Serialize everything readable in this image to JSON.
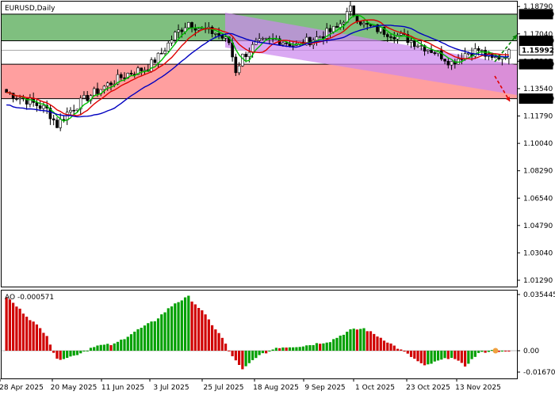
{
  "chart_data": {
    "type": "candlestick",
    "symbol": "EURUSD",
    "timeframe": "Daily",
    "title": "EURUSD,Daily",
    "price_axis": {
      "min": 1.0129,
      "max": 1.187,
      "ticks": [
        "1.18790",
        "1.17040",
        "1.15292",
        "1.13540",
        "1.11790",
        "1.10040",
        "1.08290",
        "1.06540",
        "1.04790",
        "1.03040",
        "1.01290"
      ]
    },
    "date_labels": [
      "28 Apr 2025",
      "20 May 2025",
      "11 Jun 2025",
      "3 Jul 2025",
      "25 Jul 2025",
      "18 Aug 2025",
      "9 Sep 2025",
      "1 Oct 2025",
      "23 Oct 2025",
      "13 Nov 2025"
    ],
    "levels": [
      {
        "label": "1.18300",
        "value": 1.183,
        "style": "box"
      },
      {
        "label": "1.16600",
        "value": 1.166,
        "style": "box"
      },
      {
        "label": "1.15992",
        "value": 1.15992,
        "style": "current"
      },
      {
        "label": "1.15100",
        "value": 1.151,
        "style": "box"
      },
      {
        "label": "1.12900",
        "value": 1.129,
        "style": "box"
      }
    ],
    "zones": [
      {
        "name": "resistance",
        "from": 1.166,
        "to": 1.183,
        "color": "#7fbf7f"
      },
      {
        "name": "support",
        "from": 1.129,
        "to": 1.151,
        "color": "#ff9f9f"
      }
    ],
    "moving_averages": [
      {
        "color": "#00c000"
      },
      {
        "color": "#e00000"
      },
      {
        "color": "#0000c0"
      }
    ],
    "ao": {
      "label": "AO -0.000571",
      "current": -0.000571,
      "axis_ticks": [
        "0.035445",
        "0.00",
        "-0.016705"
      ],
      "max": 0.035445,
      "min": -0.016705
    },
    "candle_count": 150
  },
  "colors": {
    "up": "#00a000",
    "down": "#d00000",
    "channel": "#cc88ee",
    "arrow_up": "#008000",
    "arrow_down": "#e00000"
  }
}
